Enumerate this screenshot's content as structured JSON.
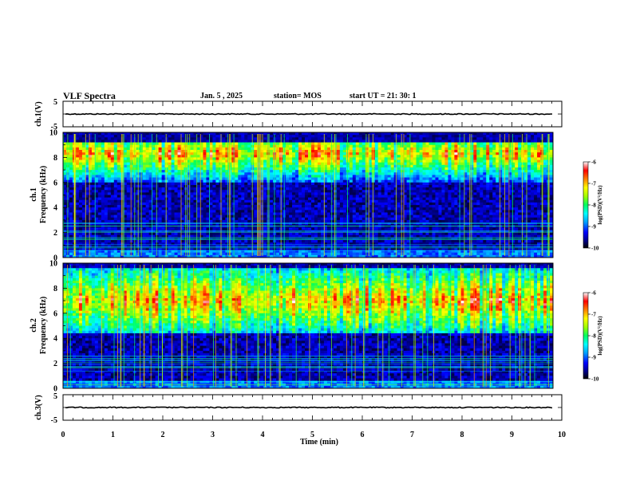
{
  "header": {
    "title": "VLF Spectra",
    "date": "Jan. 5 , 2025",
    "station": "station= MOS",
    "start_ut": "start UT = 21: 30: 1"
  },
  "chart_data": [
    {
      "type": "line",
      "name": "ch.1 waveform",
      "ylabel": "ch.1(V)",
      "xlim": [
        0,
        10
      ],
      "ylim": [
        -5,
        5
      ],
      "yticks": [
        "5",
        "-5"
      ],
      "level": 0
    },
    {
      "type": "heatmap",
      "name": "ch.1 spectrogram",
      "ylabel": "ch.1\nFrequency (kHz)",
      "ylabel_lines": [
        "ch.1",
        "Frequency (kHz)"
      ],
      "xlim": [
        0,
        9.83
      ],
      "ylim": [
        0,
        10
      ],
      "yticks": [
        "0",
        "2",
        "4",
        "6",
        "8",
        "10"
      ],
      "band_kHz": [
        6.0,
        9.2
      ],
      "band_peak_kHz": 8.3,
      "colorbar": {
        "label": "log(PSD)(V²/Hz)",
        "ticks": [
          "-6",
          "-7",
          "-8",
          "-9",
          "-10"
        ],
        "range": [
          -10,
          -6
        ]
      }
    },
    {
      "type": "heatmap",
      "name": "ch.2 spectrogram",
      "ylabel": "ch.2\nFrequency (kHz)",
      "ylabel_lines": [
        "ch.2",
        "Frequency (kHz)"
      ],
      "xlim": [
        0,
        9.83
      ],
      "ylim": [
        0,
        10
      ],
      "yticks": [
        "0",
        "2",
        "4",
        "6",
        "8",
        "10"
      ],
      "band_kHz": [
        4.5,
        9.5
      ],
      "band_peak_kHz": 7.0,
      "colorbar": {
        "label": "log(PSD)(V²/Hz)",
        "ticks": [
          "-6",
          "-7",
          "-8",
          "-9",
          "-10"
        ],
        "range": [
          -10,
          -6
        ]
      }
    },
    {
      "type": "line",
      "name": "ch.3 waveform",
      "ylabel": "ch.3(V)",
      "xlim": [
        0,
        10
      ],
      "ylim": [
        -5,
        5
      ],
      "yticks": [
        "5",
        "-5"
      ],
      "xticks": [
        "0",
        "1",
        "2",
        "3",
        "4",
        "5",
        "6",
        "7",
        "8",
        "9",
        "10"
      ],
      "xlabel": "Time (min)",
      "level": 0
    }
  ],
  "colors": {
    "scale": [
      "#000080",
      "#0000ff",
      "#00a0ff",
      "#00ffff",
      "#00ff80",
      "#80ff00",
      "#ffff00",
      "#ff8000",
      "#ff0000",
      "#ffffff"
    ]
  }
}
